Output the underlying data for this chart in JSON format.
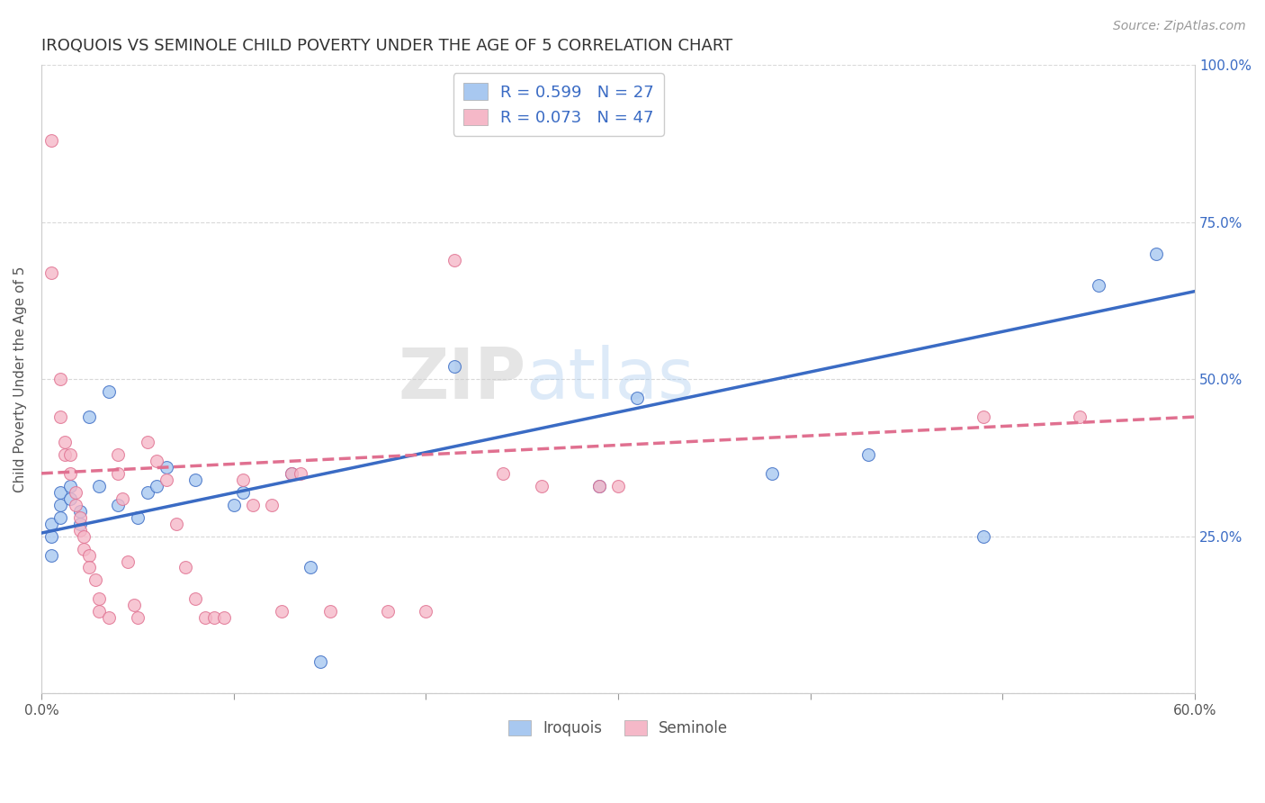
{
  "title": "IROQUOIS VS SEMINOLE CHILD POVERTY UNDER THE AGE OF 5 CORRELATION CHART",
  "source": "Source: ZipAtlas.com",
  "ylabel": "Child Poverty Under the Age of 5",
  "xlim": [
    0.0,
    0.6
  ],
  "ylim": [
    0.0,
    1.0
  ],
  "xticks": [
    0.0,
    0.1,
    0.2,
    0.3,
    0.4,
    0.5,
    0.6
  ],
  "xticklabels": [
    "0.0%",
    "",
    "",
    "",
    "",
    "",
    "60.0%"
  ],
  "yticks": [
    0.0,
    0.25,
    0.5,
    0.75,
    1.0
  ],
  "yticklabels_right": [
    "",
    "25.0%",
    "50.0%",
    "75.0%",
    "100.0%"
  ],
  "watermark": "ZIPatlas",
  "iroquois_scatter": [
    [
      0.005,
      0.22
    ],
    [
      0.005,
      0.25
    ],
    [
      0.005,
      0.27
    ],
    [
      0.01,
      0.28
    ],
    [
      0.01,
      0.3
    ],
    [
      0.01,
      0.32
    ],
    [
      0.015,
      0.31
    ],
    [
      0.015,
      0.33
    ],
    [
      0.02,
      0.27
    ],
    [
      0.02,
      0.29
    ],
    [
      0.025,
      0.44
    ],
    [
      0.03,
      0.33
    ],
    [
      0.035,
      0.48
    ],
    [
      0.04,
      0.3
    ],
    [
      0.05,
      0.28
    ],
    [
      0.055,
      0.32
    ],
    [
      0.06,
      0.33
    ],
    [
      0.065,
      0.36
    ],
    [
      0.08,
      0.34
    ],
    [
      0.1,
      0.3
    ],
    [
      0.105,
      0.32
    ],
    [
      0.13,
      0.35
    ],
    [
      0.14,
      0.2
    ],
    [
      0.145,
      0.05
    ],
    [
      0.215,
      0.52
    ],
    [
      0.29,
      0.33
    ],
    [
      0.31,
      0.47
    ],
    [
      0.38,
      0.35
    ],
    [
      0.43,
      0.38
    ],
    [
      0.49,
      0.25
    ],
    [
      0.55,
      0.65
    ],
    [
      0.58,
      0.7
    ]
  ],
  "seminole_scatter": [
    [
      0.005,
      0.88
    ],
    [
      0.005,
      0.67
    ],
    [
      0.01,
      0.5
    ],
    [
      0.01,
      0.44
    ],
    [
      0.012,
      0.4
    ],
    [
      0.012,
      0.38
    ],
    [
      0.015,
      0.38
    ],
    [
      0.015,
      0.35
    ],
    [
      0.018,
      0.32
    ],
    [
      0.018,
      0.3
    ],
    [
      0.02,
      0.28
    ],
    [
      0.02,
      0.26
    ],
    [
      0.022,
      0.25
    ],
    [
      0.022,
      0.23
    ],
    [
      0.025,
      0.22
    ],
    [
      0.025,
      0.2
    ],
    [
      0.028,
      0.18
    ],
    [
      0.03,
      0.15
    ],
    [
      0.03,
      0.13
    ],
    [
      0.035,
      0.12
    ],
    [
      0.04,
      0.38
    ],
    [
      0.04,
      0.35
    ],
    [
      0.042,
      0.31
    ],
    [
      0.045,
      0.21
    ],
    [
      0.048,
      0.14
    ],
    [
      0.05,
      0.12
    ],
    [
      0.055,
      0.4
    ],
    [
      0.06,
      0.37
    ],
    [
      0.065,
      0.34
    ],
    [
      0.07,
      0.27
    ],
    [
      0.075,
      0.2
    ],
    [
      0.08,
      0.15
    ],
    [
      0.085,
      0.12
    ],
    [
      0.09,
      0.12
    ],
    [
      0.095,
      0.12
    ],
    [
      0.105,
      0.34
    ],
    [
      0.11,
      0.3
    ],
    [
      0.12,
      0.3
    ],
    [
      0.125,
      0.13
    ],
    [
      0.13,
      0.35
    ],
    [
      0.135,
      0.35
    ],
    [
      0.15,
      0.13
    ],
    [
      0.18,
      0.13
    ],
    [
      0.2,
      0.13
    ],
    [
      0.215,
      0.69
    ],
    [
      0.24,
      0.35
    ],
    [
      0.26,
      0.33
    ],
    [
      0.29,
      0.33
    ],
    [
      0.3,
      0.33
    ],
    [
      0.49,
      0.44
    ],
    [
      0.54,
      0.44
    ]
  ],
  "iroquois_line": [
    0.0,
    0.255,
    0.6,
    0.64
  ],
  "seminole_line": [
    0.0,
    0.35,
    0.6,
    0.44
  ],
  "iroquois_line_color": "#3a6bc4",
  "seminole_line_color": "#e07090",
  "iroquois_dot_color": "#a8c8f0",
  "seminole_dot_color": "#f5b8c8",
  "dot_size": 100,
  "dot_alpha": 0.8,
  "line_width": 2.5,
  "background_color": "#ffffff",
  "title_color": "#333333",
  "right_tick_color": "#3a6bc4",
  "grid_color": "#d0d0d0",
  "grid_alpha": 0.8
}
